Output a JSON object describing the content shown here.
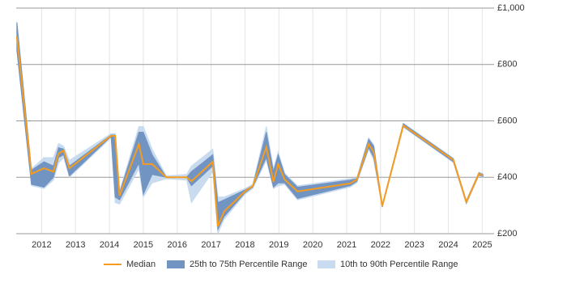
{
  "chart_data": {
    "type": "line",
    "x": [
      2011.27,
      2011.7,
      2012.07,
      2012.35,
      2012.5,
      2012.65,
      2012.82,
      2014.05,
      2014.17,
      2014.3,
      2014.87,
      2015.0,
      2015.26,
      2015.68,
      2016.28,
      2016.42,
      2017.05,
      2017.2,
      2017.38,
      2018.0,
      2018.23,
      2018.63,
      2018.84,
      2018.98,
      2019.17,
      2019.55,
      2021.1,
      2021.3,
      2021.65,
      2021.8,
      2022.05,
      2022.67,
      2024.15,
      2024.53,
      2024.9,
      2025.02
    ],
    "series": [
      {
        "name": "Median",
        "color": "#f59c1f",
        "values": [
          900,
          412,
          432,
          420,
          484,
          495,
          432,
          547,
          547,
          335,
          518,
          447,
          447,
          400,
          400,
          386,
          455,
          226,
          278,
          350,
          369,
          507,
          384,
          447,
          392,
          350,
          378,
          392,
          518,
          490,
          298,
          584,
          461,
          312,
          412,
          406
        ]
      }
    ],
    "bands": [
      {
        "name": "10th to 90th Percentile Range",
        "color": "#c9dbef",
        "low": [
          850,
          370,
          360,
          390,
          450,
          470,
          400,
          540,
          310,
          305,
          430,
          330,
          380,
          395,
          390,
          310,
          420,
          200,
          250,
          340,
          360,
          460,
          360,
          370,
          375,
          320,
          365,
          380,
          500,
          460,
          293,
          578,
          452,
          305,
          405,
          400
        ],
        "high": [
          950,
          430,
          470,
          470,
          520,
          510,
          460,
          555,
          555,
          350,
          580,
          580,
          500,
          405,
          410,
          440,
          500,
          330,
          330,
          360,
          375,
          580,
          430,
          490,
          415,
          370,
          395,
          398,
          540,
          515,
          302,
          592,
          468,
          318,
          418,
          412
        ]
      },
      {
        "name": "25th to 75th Percentile Range",
        "color": "#7294c2",
        "low": [
          850,
          375,
          365,
          400,
          470,
          480,
          405,
          545,
          330,
          320,
          450,
          340,
          410,
          400,
          400,
          370,
          440,
          215,
          260,
          345,
          365,
          470,
          365,
          380,
          380,
          325,
          370,
          385,
          505,
          470,
          295,
          580,
          455,
          308,
          408,
          402
        ],
        "high": [
          950,
          425,
          455,
          440,
          505,
          500,
          440,
          550,
          550,
          345,
          560,
          560,
          480,
          400,
          400,
          420,
          480,
          310,
          320,
          355,
          370,
          560,
          420,
          480,
          410,
          365,
          390,
          395,
          535,
          510,
          300,
          590,
          465,
          316,
          416,
          410
        ]
      }
    ],
    "legend_order": [
      "Median",
      "25th to 75th Percentile Range",
      "10th to 90th Percentile Range"
    ],
    "xlim": [
      2011.25,
      2025.35
    ],
    "xticks": [
      2012,
      2013,
      2014,
      2015,
      2016,
      2017,
      2018,
      2019,
      2020,
      2021,
      2022,
      2023,
      2024,
      2025
    ],
    "ylim": [
      200,
      1000
    ],
    "yticks": [
      {
        "value": 200,
        "label": "£200"
      },
      {
        "value": 400,
        "label": "£400"
      },
      {
        "value": 600,
        "label": "£600"
      },
      {
        "value": 800,
        "label": "£800"
      },
      {
        "value": 1000,
        "label": "£1,000"
      }
    ],
    "grid": true
  }
}
